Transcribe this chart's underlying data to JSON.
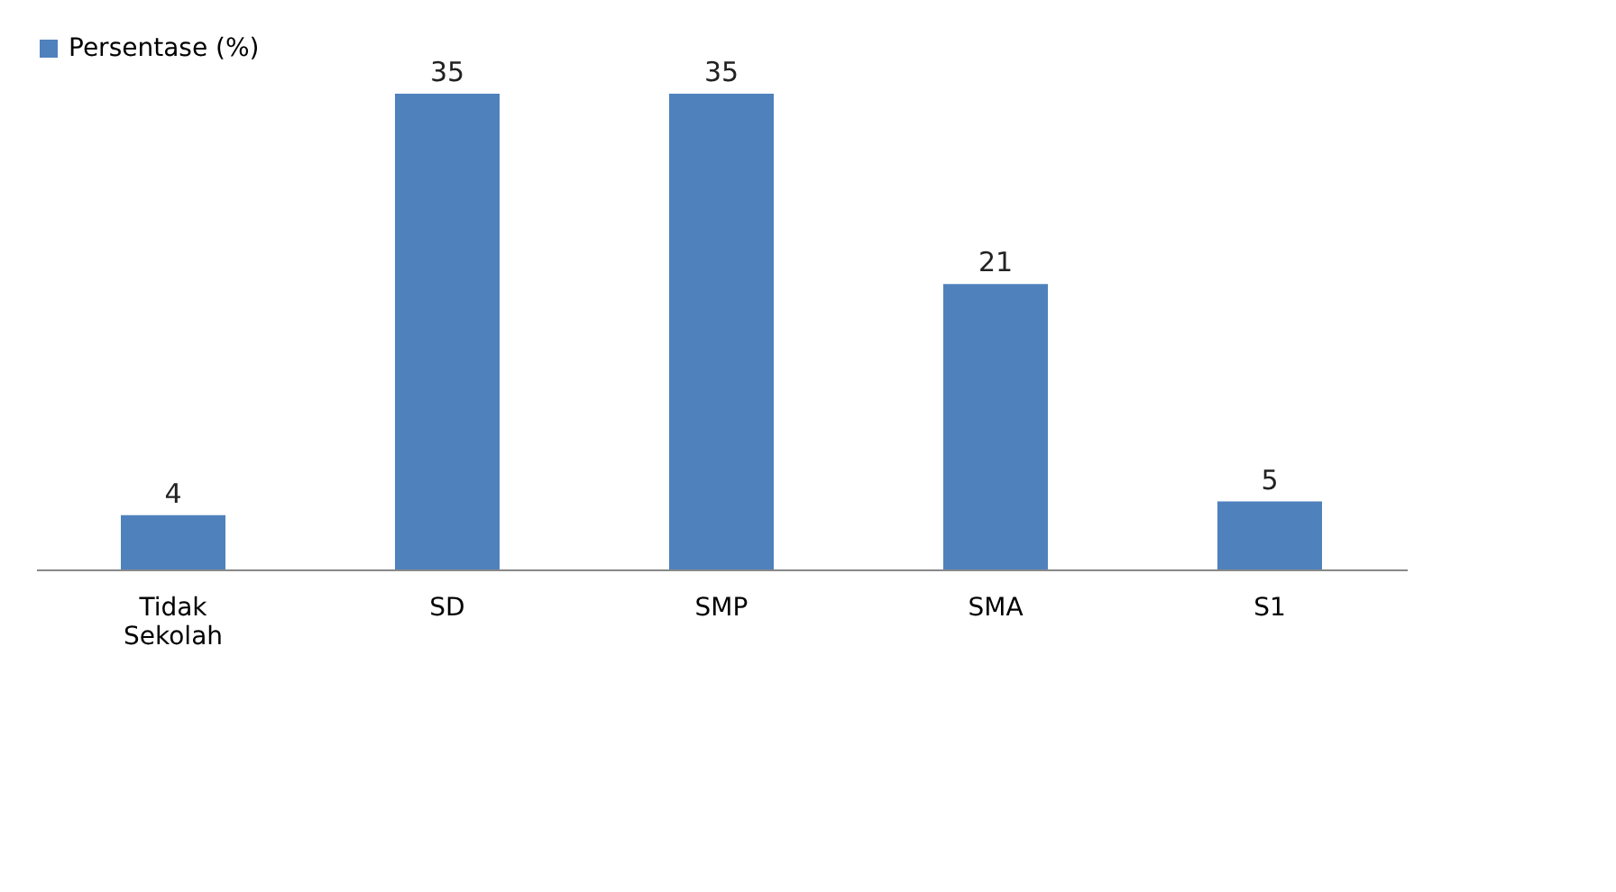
{
  "chart_data": {
    "type": "bar",
    "categories": [
      "Tidak Sekolah",
      "SD",
      "SMP",
      "SMA",
      "S1"
    ],
    "series": [
      {
        "name": "Persentase (%)",
        "color": "#4f81bd",
        "values": [
          4,
          35,
          35,
          21,
          5
        ]
      }
    ],
    "data_labels": true,
    "legend": "top",
    "grid": false
  }
}
